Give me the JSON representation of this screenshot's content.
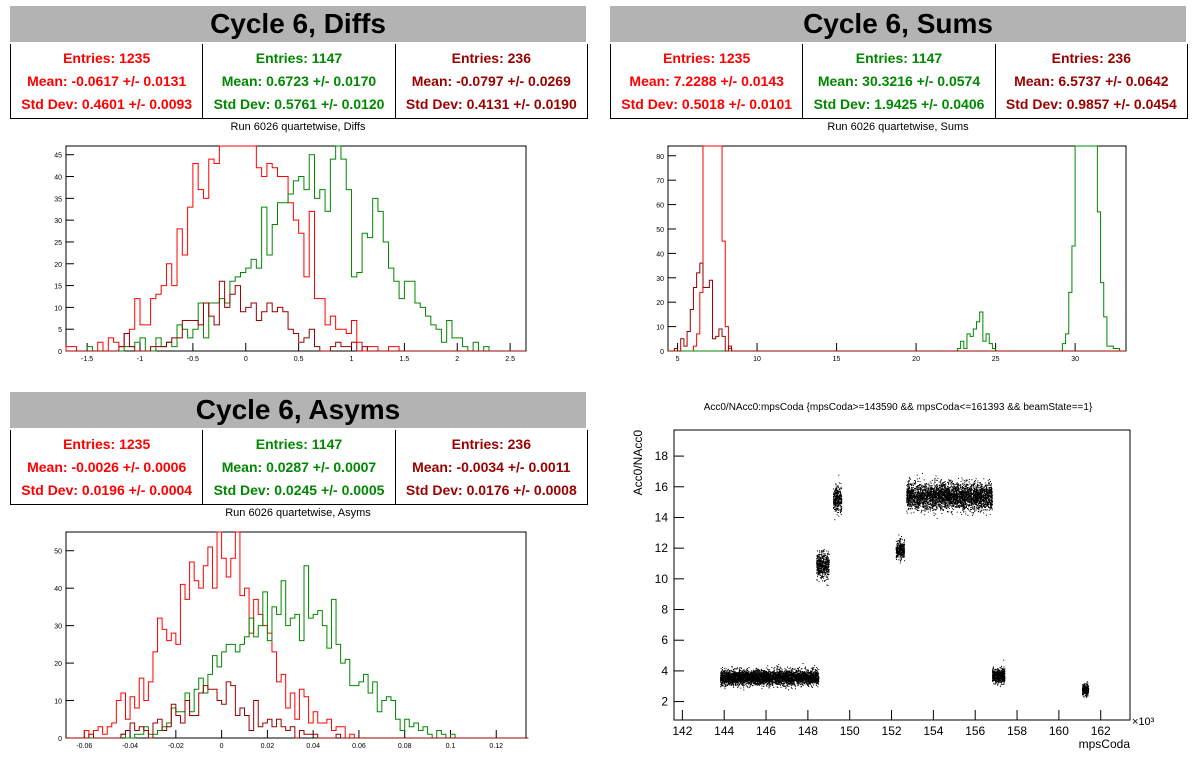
{
  "panels": {
    "diffs": {
      "header": "Cycle 6, Diffs",
      "subtitle": "Run 6026 quartetwise, Diffs",
      "stats": [
        {
          "color": "#ff0000",
          "entries": "Entries: 1235",
          "mean": "Mean: -0.0617 +/- 0.0131",
          "std": "Std Dev: 0.4601 +/- 0.0093"
        },
        {
          "color": "#008800",
          "entries": "Entries: 1147",
          "mean": "Mean: 0.6723 +/- 0.0170",
          "std": "Std Dev: 0.5761 +/- 0.0120"
        },
        {
          "color": "#990000",
          "entries": "Entries: 236",
          "mean": "Mean: -0.0797 +/- 0.0269",
          "std": "Std Dev: 0.4131 +/- 0.0190"
        }
      ]
    },
    "sums": {
      "header": "Cycle 6, Sums",
      "subtitle": "Run 6026 quartetwise, Sums",
      "stats": [
        {
          "color": "#ff0000",
          "entries": "Entries: 1235",
          "mean": "Mean: 7.2288 +/- 0.0143",
          "std": "Std Dev: 0.5018 +/- 0.0101"
        },
        {
          "color": "#008800",
          "entries": "Entries: 1147",
          "mean": "Mean: 30.3216 +/- 0.0574",
          "std": "Std Dev: 1.9425 +/- 0.0406"
        },
        {
          "color": "#990000",
          "entries": "Entries: 236",
          "mean": "Mean: 6.5737 +/- 0.0642",
          "std": "Std Dev: 0.9857 +/- 0.0454"
        }
      ]
    },
    "asyms": {
      "header": "Cycle 6, Asyms",
      "subtitle": "Run 6026 quartetwise, Asyms",
      "stats": [
        {
          "color": "#ff0000",
          "entries": "Entries: 1235",
          "mean": "Mean: -0.0026 +/- 0.0006",
          "std": "Std Dev: 0.0196 +/- 0.0004"
        },
        {
          "color": "#008800",
          "entries": "Entries: 1147",
          "mean": "Mean: 0.0287 +/- 0.0007",
          "std": "Std Dev: 0.0245 +/- 0.0005"
        },
        {
          "color": "#990000",
          "entries": "Entries: 236",
          "mean": "Mean: -0.0034 +/- 0.0011",
          "std": "Std Dev: 0.0176 +/- 0.0008"
        }
      ]
    },
    "scatter": {
      "title": "Acc0/NAcc0:mpsCoda {mpsCoda>=143590 && mpsCoda<=161393 && beamState==1}"
    }
  },
  "chart_data": [
    {
      "type": "histogram",
      "id": "diffs",
      "xlim": [
        -1.7,
        2.65
      ],
      "ylim": [
        0,
        47
      ],
      "xticks": [
        -1.5,
        -1,
        -0.5,
        0,
        0.5,
        1,
        1.5,
        2,
        2.5
      ],
      "xticklabels": [
        "-1.5",
        "-1",
        "-0.5",
        "0",
        "0.5",
        "1",
        "1.5",
        "2",
        "2.5"
      ],
      "yticks": [
        0,
        5,
        10,
        15,
        20,
        25,
        30,
        35,
        40,
        45
      ],
      "series": [
        {
          "color": "#ff0000",
          "mean": -0.0617,
          "std": 0.4601,
          "entries": 1235
        },
        {
          "color": "#008800",
          "mean": 0.6723,
          "std": 0.5761,
          "entries": 1147
        },
        {
          "color": "#990000",
          "mean": -0.0797,
          "std": 0.4131,
          "entries": 236
        }
      ],
      "bin_width": 0.05
    },
    {
      "type": "histogram",
      "id": "sums",
      "xlim": [
        4.4,
        33.2
      ],
      "ylim": [
        0,
        84
      ],
      "xticks": [
        5,
        10,
        15,
        20,
        25,
        30
      ],
      "xticklabels": [
        "5",
        "10",
        "15",
        "20",
        "25",
        "30"
      ],
      "yticks": [
        0,
        10,
        20,
        30,
        40,
        50,
        60,
        70,
        80
      ],
      "series": [
        {
          "color": "#ff0000",
          "mean": 7.2288,
          "std": 0.5018,
          "entries": 1235
        },
        {
          "color": "#008800",
          "mean": 30.3216,
          "std": 1.9425,
          "entries": 1147
        },
        {
          "color": "#990000",
          "mean": 6.5737,
          "std": 0.9857,
          "entries": 236
        }
      ],
      "bin_width": 0.2
    },
    {
      "type": "histogram",
      "id": "asyms",
      "xlim": [
        -0.068,
        0.133
      ],
      "ylim": [
        0,
        55
      ],
      "xticks": [
        -0.06,
        -0.04,
        -0.02,
        0,
        0.02,
        0.04,
        0.06,
        0.08,
        0.1,
        0.12
      ],
      "xticklabels": [
        "-0.06",
        "-0.04",
        "-0.02",
        "0",
        "0.02",
        "0.04",
        "0.06",
        "0.08",
        "0.1",
        "0.12"
      ],
      "yticks": [
        0,
        10,
        20,
        30,
        40,
        50
      ],
      "series": [
        {
          "color": "#ff0000",
          "mean": -0.0026,
          "std": 0.0196,
          "entries": 1235
        },
        {
          "color": "#008800",
          "mean": 0.0287,
          "std": 0.0245,
          "entries": 1147
        },
        {
          "color": "#990000",
          "mean": -0.0034,
          "std": 0.0176,
          "entries": 236
        }
      ],
      "bin_width": 0.002
    },
    {
      "type": "scatter",
      "id": "scatter",
      "xlabel": "mpsCoda",
      "ylabel": "Acc0/NAcc0",
      "x_multiplier_label": "×10³",
      "xlim": [
        141.6,
        163.4
      ],
      "ylim": [
        0.8,
        19.7
      ],
      "xticks": [
        142,
        144,
        146,
        148,
        150,
        152,
        154,
        156,
        158,
        160,
        162
      ],
      "xticklabels": [
        "142",
        "144",
        "146",
        "148",
        "150",
        "152",
        "154",
        "156",
        "158",
        "160",
        "162"
      ],
      "yticks": [
        2,
        4,
        6,
        8,
        10,
        12,
        14,
        16,
        18
      ],
      "yticklabels": [
        "2",
        "4",
        "6",
        "8",
        "10",
        "12",
        "14",
        "16",
        "18"
      ],
      "clusters": [
        {
          "x": [
            143.8,
            148.5
          ],
          "y_mean": 3.6,
          "y_spread": 0.4
        },
        {
          "x": [
            148.4,
            149.0
          ],
          "y_mean": 10.9,
          "y_spread": 0.7
        },
        {
          "x": [
            149.2,
            149.6
          ],
          "y_mean": 15.2,
          "y_spread": 0.7
        },
        {
          "x": [
            152.2,
            152.6
          ],
          "y_mean": 11.9,
          "y_spread": 0.5
        },
        {
          "x": [
            152.7,
            156.8
          ],
          "y_mean": 15.4,
          "y_spread": 0.7
        },
        {
          "x": [
            156.8,
            157.4
          ],
          "y_mean": 3.7,
          "y_spread": 0.4
        },
        {
          "x": [
            161.1,
            161.4
          ],
          "y_mean": 2.8,
          "y_spread": 0.3
        }
      ]
    }
  ]
}
